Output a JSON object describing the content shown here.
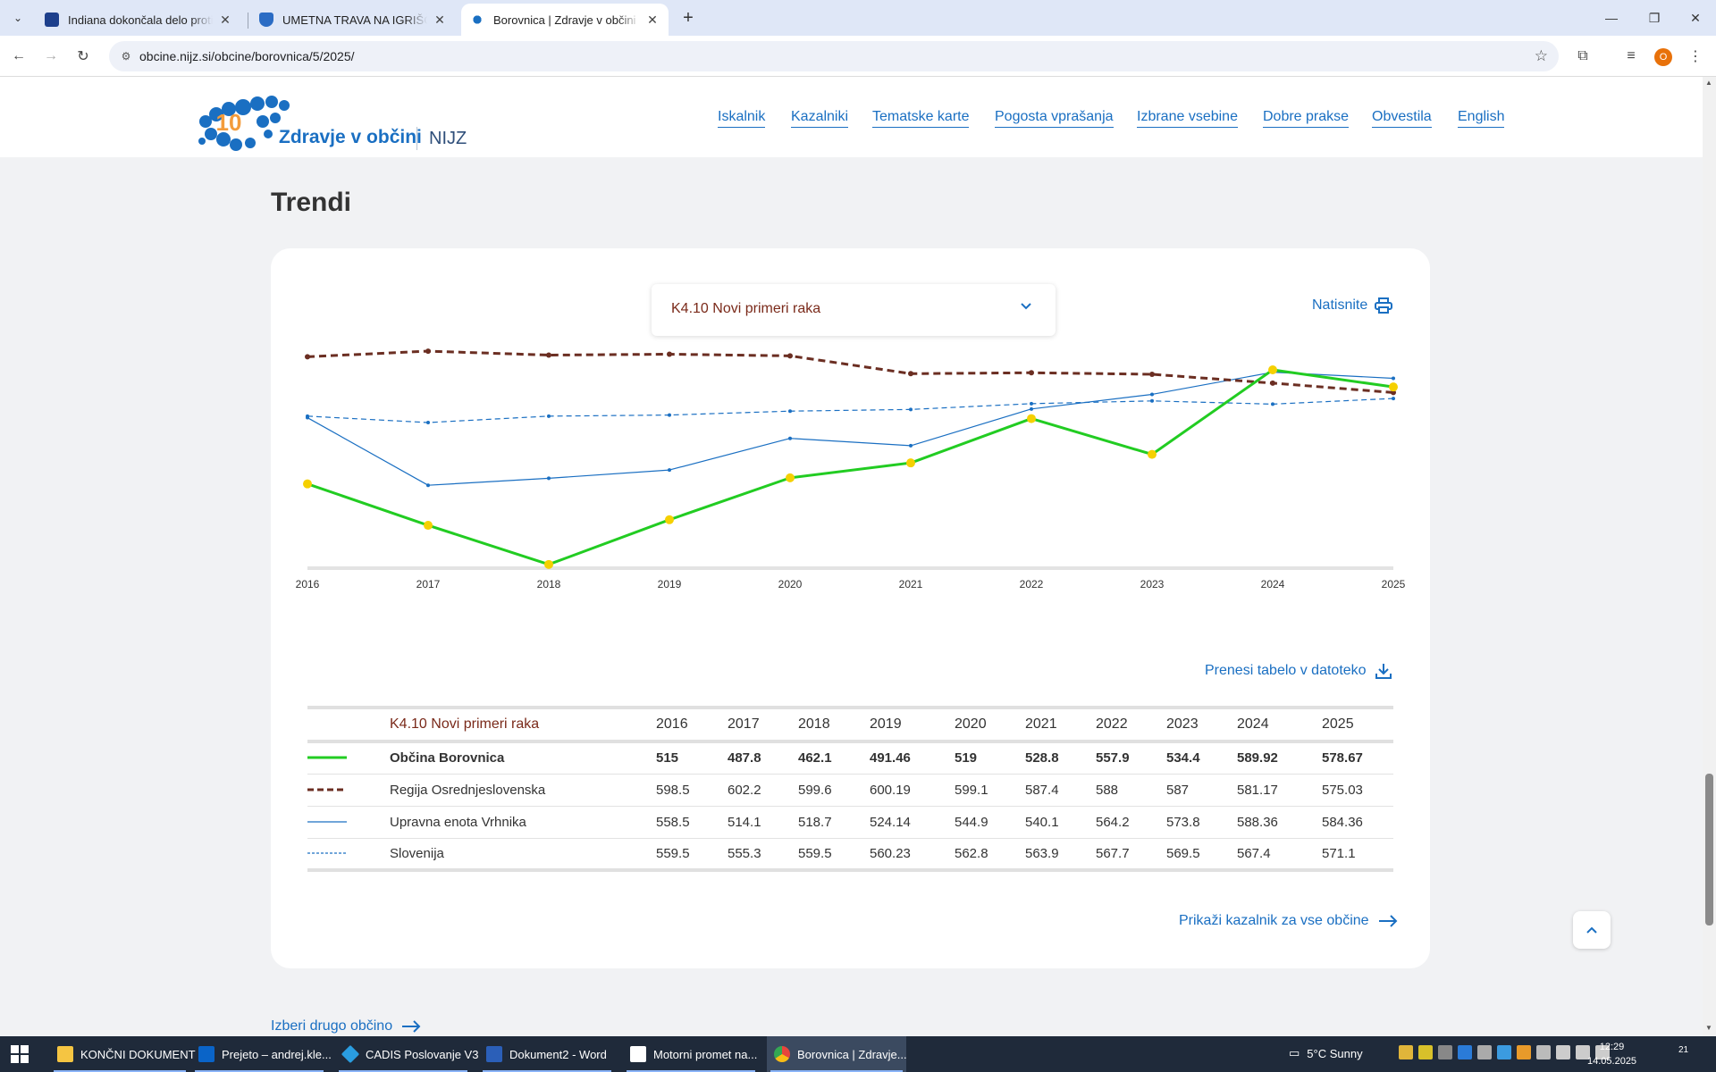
{
  "browser": {
    "tabs": [
      {
        "title": "Indiana dokončala delo proti pr",
        "favicon_color": "#1d3f8c"
      },
      {
        "title": "UMETNA TRAVA NA IGRIŠČU V",
        "favicon_color": "#2b6cc4"
      },
      {
        "title": "Borovnica | Zdravje v občini | N",
        "favicon_color": "#1a6fc2"
      }
    ],
    "new_tab_label": "+",
    "url": "obcine.nijz.si/obcine/borovnica/5/2025/",
    "profile_initial": "O"
  },
  "site": {
    "logo_number": "10",
    "logo_text": "Zdravje v občini",
    "logo_org": "NIJZ",
    "nav": [
      "Iskalnik",
      "Kazalniki",
      "Tematske karte",
      "Pogosta vprašanja",
      "Izbrane vsebine",
      "Dobre prakse",
      "Obvestila",
      "English"
    ]
  },
  "page": {
    "section_title": "Trendi",
    "indicator_select": "K4.10 Novi primeri raka",
    "print_label": "Natisnite",
    "download_label": "Prenesi tabelo v datoteko",
    "all_municipalities_label": "Prikaži kazalnik za vse občine",
    "other_municipality_label": "Izberi drugo občino"
  },
  "table": {
    "indicator_header": "K4.10 Novi primeri raka",
    "years": [
      "2016",
      "2017",
      "2018",
      "2019",
      "2020",
      "2021",
      "2022",
      "2023",
      "2024",
      "2025"
    ],
    "rows": [
      {
        "name": "Občina Borovnica",
        "values": [
          "515",
          "487.8",
          "462.1",
          "491.46",
          "519",
          "528.8",
          "557.9",
          "534.4",
          "589.92",
          "578.67"
        ]
      },
      {
        "name": "Regija Osrednjeslovenska",
        "values": [
          "598.5",
          "602.2",
          "599.6",
          "600.19",
          "599.1",
          "587.4",
          "588",
          "587",
          "581.17",
          "575.03"
        ]
      },
      {
        "name": "Upravna enota Vrhnika",
        "values": [
          "558.5",
          "514.1",
          "518.7",
          "524.14",
          "544.9",
          "540.1",
          "564.2",
          "573.8",
          "588.36",
          "584.36"
        ]
      },
      {
        "name": "Slovenija",
        "values": [
          "559.5",
          "555.3",
          "559.5",
          "560.23",
          "562.8",
          "563.9",
          "567.7",
          "569.5",
          "567.4",
          "571.1"
        ]
      }
    ]
  },
  "chart_data": {
    "type": "line",
    "title": "K4.10 Novi primeri raka",
    "x": [
      2016,
      2017,
      2018,
      2019,
      2020,
      2021,
      2022,
      2023,
      2024,
      2025
    ],
    "ylim": [
      462,
      604
    ],
    "series": [
      {
        "name": "Občina Borovnica",
        "color": "#22cc22",
        "style": "solid-thick",
        "values": [
          515,
          487.8,
          462.1,
          491.46,
          519,
          528.8,
          557.9,
          534.4,
          589.92,
          578.67
        ]
      },
      {
        "name": "Regija Osrednjeslovenska",
        "color": "#6b2e22",
        "style": "dashed",
        "values": [
          598.5,
          602.2,
          599.6,
          600.19,
          599.1,
          587.4,
          588,
          587,
          581.17,
          575.03
        ]
      },
      {
        "name": "Upravna enota Vrhnika",
        "color": "#1a6fc2",
        "style": "solid-thin",
        "values": [
          558.5,
          514.1,
          518.7,
          524.14,
          544.9,
          540.1,
          564.2,
          573.8,
          588.36,
          584.36
        ]
      },
      {
        "name": "Slovenija",
        "color": "#1a6fc2",
        "style": "dashed-thin",
        "values": [
          559.5,
          555.3,
          559.5,
          560.23,
          562.8,
          563.9,
          567.7,
          569.5,
          567.4,
          571.1
        ]
      }
    ]
  },
  "taskbar": {
    "items": [
      {
        "label": "KONČNI DOKUMENT",
        "color": "#f5c542"
      },
      {
        "label": "Prejeto – andrej.kle...",
        "color": "#0a64c8"
      },
      {
        "label": "CADIS Poslovanje V3",
        "color": "#2a9de0"
      },
      {
        "label": "Dokument2 - Word",
        "color": "#2b5fb8"
      },
      {
        "label": "Motorni promet na...",
        "color": "#ffffff"
      },
      {
        "label": "Borovnica | Zdravje...",
        "color": "#e8453c"
      }
    ],
    "weather": "5°C  Sunny",
    "time": "12:29",
    "date": "14.05.2025",
    "notification_count": "21"
  }
}
